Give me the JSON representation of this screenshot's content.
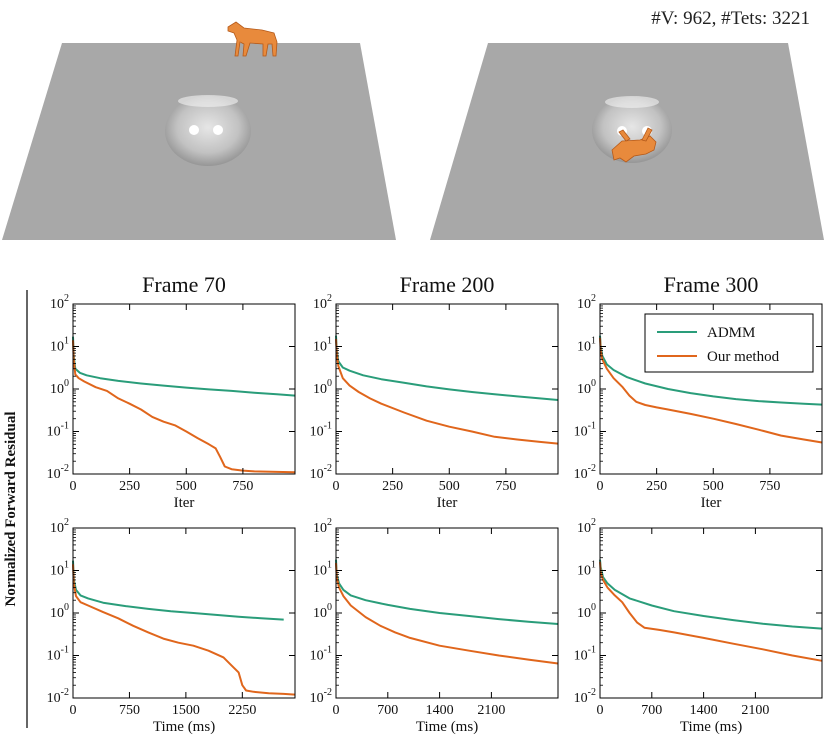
{
  "header": {
    "stats": "#V: 962,  #Tets: 3221"
  },
  "colors": {
    "admm": "#2a9d7a",
    "ours": "#e0661c",
    "floor": "#a8a8a8",
    "horse": "#e88a3c"
  },
  "legend": {
    "admm": "ADMM",
    "ours": "Our method"
  },
  "ylabel": "Normalized Forward Residual",
  "chart_data": [
    {
      "type": "line",
      "title": "Frame 70",
      "xlabel": "Iter",
      "yscale": "log",
      "xlim": [
        0,
        980
      ],
      "ylim": [
        0.01,
        100
      ],
      "xticks": [
        0,
        250,
        500,
        750
      ],
      "xtick_labels": [
        "0",
        "250",
        "500",
        "750"
      ],
      "series": [
        {
          "name": "ADMM",
          "x": [
            0,
            3,
            10,
            30,
            60,
            120,
            200,
            300,
            400,
            500,
            600,
            700,
            800,
            900,
            980
          ],
          "y": [
            17,
            6,
            3.0,
            2.4,
            2.1,
            1.8,
            1.55,
            1.35,
            1.2,
            1.08,
            0.98,
            0.9,
            0.82,
            0.75,
            0.7
          ]
        },
        {
          "name": "Our method",
          "x": [
            0,
            3,
            10,
            25,
            50,
            100,
            150,
            200,
            250,
            300,
            350,
            400,
            450,
            500,
            550,
            600,
            630,
            650,
            670,
            700,
            750,
            800,
            900,
            980
          ],
          "y": [
            14,
            5,
            2.2,
            1.8,
            1.5,
            1.1,
            0.9,
            0.6,
            0.45,
            0.33,
            0.22,
            0.17,
            0.14,
            0.1,
            0.07,
            0.05,
            0.04,
            0.025,
            0.015,
            0.013,
            0.012,
            0.0115,
            0.0112,
            0.011
          ]
        }
      ]
    },
    {
      "type": "line",
      "title": "Frame 200",
      "xlabel": "Iter",
      "yscale": "log",
      "xlim": [
        0,
        980
      ],
      "ylim": [
        0.01,
        100
      ],
      "xticks": [
        0,
        250,
        500,
        750
      ],
      "xtick_labels": [
        "0",
        "250",
        "500",
        "750"
      ],
      "series": [
        {
          "name": "ADMM",
          "x": [
            0,
            3,
            10,
            30,
            60,
            120,
            200,
            300,
            400,
            500,
            600,
            700,
            800,
            900,
            980
          ],
          "y": [
            18,
            8,
            4.5,
            3.2,
            2.7,
            2.1,
            1.7,
            1.4,
            1.15,
            0.98,
            0.85,
            0.75,
            0.67,
            0.6,
            0.55
          ]
        },
        {
          "name": "Our method",
          "x": [
            0,
            3,
            10,
            30,
            60,
            100,
            150,
            200,
            300,
            400,
            500,
            600,
            700,
            800,
            900,
            980
          ],
          "y": [
            15,
            7,
            3.5,
            1.8,
            1.2,
            0.85,
            0.6,
            0.45,
            0.28,
            0.18,
            0.13,
            0.1,
            0.075,
            0.065,
            0.057,
            0.052
          ]
        }
      ]
    },
    {
      "type": "line",
      "title": "Frame 300",
      "xlabel": "Iter",
      "yscale": "log",
      "xlim": [
        0,
        980
      ],
      "ylim": [
        0.01,
        100
      ],
      "xticks": [
        0,
        250,
        500,
        750
      ],
      "xtick_labels": [
        "0",
        "250",
        "500",
        "750"
      ],
      "series": [
        {
          "name": "ADMM",
          "x": [
            0,
            3,
            10,
            30,
            60,
            120,
            200,
            300,
            400,
            500,
            600,
            700,
            800,
            900,
            980
          ],
          "y": [
            18,
            10,
            6,
            3.8,
            2.8,
            1.9,
            1.35,
            1.0,
            0.8,
            0.67,
            0.58,
            0.52,
            0.48,
            0.45,
            0.43
          ]
        },
        {
          "name": "Our method",
          "x": [
            0,
            3,
            10,
            30,
            60,
            100,
            130,
            160,
            200,
            250,
            300,
            400,
            500,
            600,
            700,
            800,
            900,
            980
          ],
          "y": [
            16,
            8,
            5,
            3.0,
            1.8,
            1.1,
            0.7,
            0.5,
            0.42,
            0.37,
            0.33,
            0.26,
            0.2,
            0.15,
            0.11,
            0.08,
            0.065,
            0.055
          ]
        }
      ]
    },
    {
      "type": "line",
      "title": "",
      "xlabel": "Time (ms)",
      "yscale": "log",
      "xlim": [
        0,
        2950
      ],
      "ylim": [
        0.01,
        100
      ],
      "xticks": [
        0,
        750,
        1500,
        2250
      ],
      "xtick_labels": [
        "0",
        "750",
        "1500",
        "2250"
      ],
      "series": [
        {
          "name": "ADMM",
          "x": [
            0,
            10,
            40,
            100,
            200,
            400,
            700,
            1000,
            1300,
            1600,
            1900,
            2200,
            2500,
            2800
          ],
          "y": [
            17,
            6,
            3.5,
            2.6,
            2.2,
            1.75,
            1.45,
            1.25,
            1.1,
            1.0,
            0.9,
            0.82,
            0.75,
            0.7
          ]
        },
        {
          "name": "Our method",
          "x": [
            0,
            10,
            40,
            100,
            200,
            400,
            600,
            800,
            1000,
            1200,
            1400,
            1600,
            1800,
            2000,
            2100,
            2200,
            2250,
            2300,
            2400,
            2600,
            2800,
            2950
          ],
          "y": [
            14,
            5,
            2.5,
            1.8,
            1.5,
            1.05,
            0.75,
            0.5,
            0.35,
            0.25,
            0.2,
            0.17,
            0.13,
            0.09,
            0.06,
            0.04,
            0.02,
            0.015,
            0.014,
            0.013,
            0.0125,
            0.012
          ]
        }
      ]
    },
    {
      "type": "line",
      "title": "",
      "xlabel": "Time (ms)",
      "yscale": "log",
      "xlim": [
        0,
        3000
      ],
      "ylim": [
        0.01,
        100
      ],
      "xticks": [
        0,
        700,
        1400,
        2100
      ],
      "xtick_labels": [
        "0",
        "700",
        "1400",
        "2100"
      ],
      "series": [
        {
          "name": "ADMM",
          "x": [
            0,
            10,
            40,
            100,
            200,
            400,
            700,
            1000,
            1400,
            1800,
            2200,
            2600,
            3000
          ],
          "y": [
            18,
            8,
            5,
            3.5,
            2.6,
            2.0,
            1.55,
            1.25,
            1.0,
            0.85,
            0.72,
            0.62,
            0.55
          ]
        },
        {
          "name": "Our method",
          "x": [
            0,
            10,
            40,
            100,
            200,
            400,
            600,
            800,
            1000,
            1400,
            1800,
            2200,
            2600,
            3000
          ],
          "y": [
            15,
            7,
            4.0,
            2.5,
            1.5,
            0.8,
            0.5,
            0.35,
            0.26,
            0.17,
            0.13,
            0.1,
            0.08,
            0.065
          ]
        }
      ]
    },
    {
      "type": "line",
      "title": "",
      "xlabel": "Time (ms)",
      "yscale": "log",
      "xlim": [
        0,
        3000
      ],
      "ylim": [
        0.01,
        100
      ],
      "xticks": [
        0,
        700,
        1400,
        2100
      ],
      "xtick_labels": [
        "0",
        "700",
        "1400",
        "2100"
      ],
      "series": [
        {
          "name": "ADMM",
          "x": [
            0,
            10,
            40,
            100,
            200,
            400,
            700,
            1000,
            1400,
            1800,
            2200,
            2600,
            3000
          ],
          "y": [
            18,
            12,
            7,
            5,
            3.5,
            2.2,
            1.5,
            1.1,
            0.85,
            0.68,
            0.56,
            0.48,
            0.43
          ]
        },
        {
          "name": "Our method",
          "x": [
            0,
            10,
            40,
            100,
            200,
            300,
            400,
            500,
            600,
            800,
            1000,
            1400,
            1800,
            2200,
            2600,
            3000
          ],
          "y": [
            16,
            9,
            6,
            4,
            2.6,
            1.8,
            1.0,
            0.6,
            0.45,
            0.4,
            0.35,
            0.26,
            0.19,
            0.14,
            0.1,
            0.075
          ]
        }
      ]
    }
  ]
}
